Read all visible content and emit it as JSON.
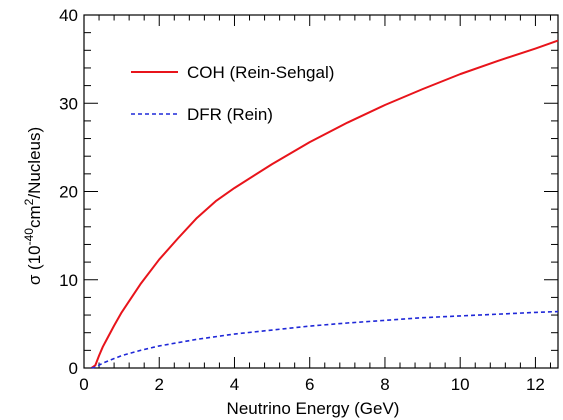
{
  "chart_data": {
    "type": "line",
    "title": "",
    "xlabel": "Neutrino Energy (GeV)",
    "ylabel": {
      "prefix": "σ (10",
      "exp1": "-40",
      "mid": "cm",
      "exp2": "2",
      "suffix": "/Nucleus)"
    },
    "xlim": [
      0,
      12.6
    ],
    "ylim": [
      0,
      40
    ],
    "x_ticks": [
      "0",
      "2",
      "4",
      "6",
      "8",
      "10",
      "12"
    ],
    "y_ticks": [
      "0",
      "10",
      "20",
      "30",
      "40"
    ],
    "grid": false,
    "legend_position": "top-left",
    "series": [
      {
        "name": "COH (Rein-Sehgal)",
        "color": "#e8141b",
        "style": "solid",
        "x": [
          0.2,
          0.3,
          0.4,
          0.5,
          0.6,
          0.8,
          1.0,
          1.5,
          2.0,
          2.5,
          3.0,
          3.5,
          4.0,
          5.0,
          6.0,
          7.0,
          8.0,
          9.0,
          10.0,
          11.0,
          12.0,
          12.6
        ],
        "y": [
          0.0,
          0.3,
          1.4,
          2.4,
          3.2,
          4.8,
          6.3,
          9.5,
          12.3,
          14.7,
          17.0,
          18.9,
          20.4,
          23.1,
          25.6,
          27.8,
          29.8,
          31.6,
          33.3,
          34.8,
          36.2,
          37.1
        ]
      },
      {
        "name": "DFR (Rein)",
        "color": "#1f28d8",
        "style": "dashed",
        "x": [
          0.2,
          0.3,
          0.5,
          0.7,
          1.0,
          1.5,
          2.0,
          3.0,
          4.0,
          5.0,
          6.0,
          7.0,
          8.0,
          9.0,
          10.0,
          11.0,
          12.0,
          12.6
        ],
        "y": [
          0.0,
          0.1,
          0.55,
          0.9,
          1.4,
          2.0,
          2.5,
          3.25,
          3.85,
          4.3,
          4.75,
          5.1,
          5.4,
          5.7,
          5.9,
          6.1,
          6.3,
          6.4
        ]
      }
    ]
  }
}
